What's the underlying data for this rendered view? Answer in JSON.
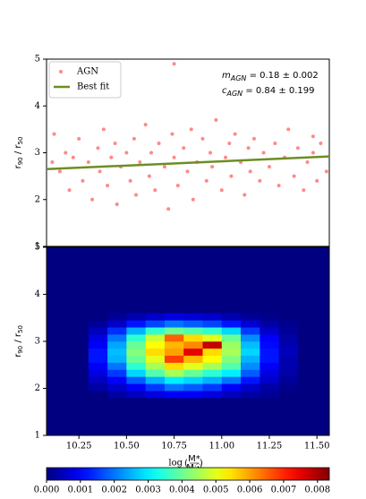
{
  "chart_data": [
    {
      "type": "scatter",
      "ylabel": {
        "base": "r",
        "sub1": "90",
        "sep": " / r",
        "sub2": "50"
      },
      "xlim": [
        10.08,
        11.565
      ],
      "ylim": [
        1,
        5
      ],
      "yticks": [
        1,
        2,
        3,
        4,
        5
      ],
      "legend": "upper left",
      "annotations": [
        {
          "symbol": "m",
          "subscript": "AGN",
          "text": " = 0.18 ± 0.002"
        },
        {
          "symbol": "c",
          "subscript": "AGN",
          "text": " = 0.84 ± 0.199"
        }
      ],
      "series": [
        {
          "name": "AGN",
          "color": "#ff3b3b",
          "kind": "points",
          "x": [
            10.12,
            10.15,
            10.18,
            10.2,
            10.22,
            10.25,
            10.27,
            10.3,
            10.32,
            10.35,
            10.36,
            10.38,
            10.4,
            10.42,
            10.44,
            10.45,
            10.47,
            10.5,
            10.52,
            10.54,
            10.55,
            10.57,
            10.6,
            10.62,
            10.63,
            10.65,
            10.67,
            10.7,
            10.72,
            10.74,
            10.75,
            10.77,
            10.8,
            10.82,
            10.84,
            10.85,
            10.87,
            10.9,
            10.92,
            10.94,
            10.95,
            10.97,
            11.0,
            11.02,
            11.04,
            11.05,
            11.07,
            11.1,
            11.12,
            11.14,
            11.15,
            11.17,
            11.2,
            11.22,
            11.25,
            11.28,
            11.3,
            11.33,
            11.35,
            11.38,
            11.4,
            11.43,
            11.45,
            11.48,
            11.5,
            11.52,
            11.55,
            10.75,
            11.48,
            10.11
          ],
          "values": [
            3.4,
            2.6,
            3.0,
            2.2,
            2.9,
            3.3,
            2.4,
            2.8,
            2.0,
            3.1,
            2.6,
            3.5,
            2.3,
            2.9,
            3.2,
            1.9,
            2.7,
            3.0,
            2.4,
            3.3,
            2.1,
            2.8,
            3.6,
            2.5,
            3.0,
            2.2,
            3.2,
            2.7,
            1.8,
            3.4,
            2.9,
            2.3,
            3.1,
            2.6,
            3.5,
            2.0,
            2.8,
            3.3,
            2.4,
            3.0,
            2.7,
            3.7,
            2.2,
            2.9,
            3.2,
            2.5,
            3.4,
            2.8,
            2.1,
            3.1,
            2.6,
            3.3,
            2.4,
            3.0,
            2.7,
            3.2,
            2.3,
            2.9,
            3.5,
            2.5,
            3.1,
            2.2,
            2.8,
            3.0,
            2.4,
            3.2,
            2.6,
            4.9,
            3.35,
            2.8
          ]
        },
        {
          "name": "Best fit",
          "color": "#6b8e23",
          "kind": "line",
          "x": [
            10.08,
            11.565
          ],
          "values": [
            2.65,
            2.92
          ]
        }
      ]
    },
    {
      "type": "heatmap",
      "xlabel": {
        "pre": "log ",
        "num": "M*",
        "den": "M☉"
      },
      "ylabel": {
        "base": "r",
        "sub1": "90",
        "sep": " / r",
        "sub2": "50"
      },
      "xlim": [
        10.08,
        11.565
      ],
      "ylim": [
        1,
        5
      ],
      "yticks": [
        1,
        2,
        3,
        4,
        5
      ],
      "xticks": [
        10.25,
        {
          "value": 10.5,
          "label": "10.50"
        },
        10.75,
        {
          "value": 11,
          "label": "11.00"
        },
        11.25,
        {
          "value": 11.5,
          "label": "11.50"
        }
      ],
      "colormap": "jet",
      "xbins": [
        10.3,
        10.4,
        10.5,
        10.6,
        10.7,
        10.8,
        10.9,
        11.0,
        11.1,
        11.2,
        11.3,
        11.4
      ],
      "ybins": [
        1.8,
        1.95,
        2.1,
        2.25,
        2.4,
        2.55,
        2.7,
        2.85,
        3.0,
        3.15,
        3.3,
        3.45,
        3.6
      ],
      "values": [
        [
          0,
          0.0003,
          0.0005,
          0.0008,
          0.001,
          0.001,
          0.0008,
          0.0005,
          0.0003,
          0.0002,
          0
        ],
        [
          0.0003,
          0.0006,
          0.001,
          0.0015,
          0.002,
          0.0018,
          0.0015,
          0.001,
          0.0006,
          0.0003,
          0.0001
        ],
        [
          0.0005,
          0.001,
          0.0018,
          0.0025,
          0.003,
          0.0028,
          0.0025,
          0.002,
          0.0012,
          0.0006,
          0.0002
        ],
        [
          0.0008,
          0.0015,
          0.0028,
          0.0038,
          0.0045,
          0.004,
          0.0035,
          0.003,
          0.0018,
          0.0008,
          0.0003
        ],
        [
          0.001,
          0.002,
          0.0035,
          0.0045,
          0.0055,
          0.005,
          0.0045,
          0.0038,
          0.0022,
          0.001,
          0.0004
        ],
        [
          0.0012,
          0.0025,
          0.004,
          0.005,
          0.0068,
          0.0058,
          0.0052,
          0.0042,
          0.0025,
          0.0012,
          0.0004
        ],
        [
          0.0012,
          0.0026,
          0.0042,
          0.0055,
          0.006,
          0.0075,
          0.0055,
          0.0045,
          0.0028,
          0.0012,
          0.0005
        ],
        [
          0.001,
          0.0024,
          0.004,
          0.0052,
          0.0058,
          0.0062,
          0.0078,
          0.0044,
          0.0026,
          0.0011,
          0.0004
        ],
        [
          0.0008,
          0.002,
          0.0035,
          0.0048,
          0.0065,
          0.0055,
          0.005,
          0.004,
          0.0022,
          0.001,
          0.0003
        ],
        [
          0.0005,
          0.0014,
          0.0025,
          0.0035,
          0.004,
          0.0038,
          0.0035,
          0.0028,
          0.0015,
          0.0006,
          0.0002
        ],
        [
          0.0002,
          0.0006,
          0.0012,
          0.0016,
          0.002,
          0.0018,
          0.0016,
          0.0012,
          0.0007,
          0.0003,
          0.0001
        ],
        [
          0,
          0.0002,
          0.0004,
          0.0006,
          0.0008,
          0.0007,
          0.0006,
          0.0004,
          0.0002,
          0.0001,
          0
        ]
      ],
      "colorbar": {
        "lim": [
          0,
          0.00835
        ],
        "ticks": [
          {
            "value": 0,
            "label": "0.000"
          },
          {
            "value": 0.001,
            "label": "0.001"
          },
          {
            "value": 0.002,
            "label": "0.002"
          },
          {
            "value": 0.003,
            "label": "0.003"
          },
          {
            "value": 0.004,
            "label": "0.004"
          },
          {
            "value": 0.005,
            "label": "0.005"
          },
          {
            "value": 0.006,
            "label": "0.006"
          },
          {
            "value": 0.007,
            "label": "0.007"
          },
          {
            "value": 0.008,
            "label": "0.008"
          }
        ]
      }
    }
  ]
}
